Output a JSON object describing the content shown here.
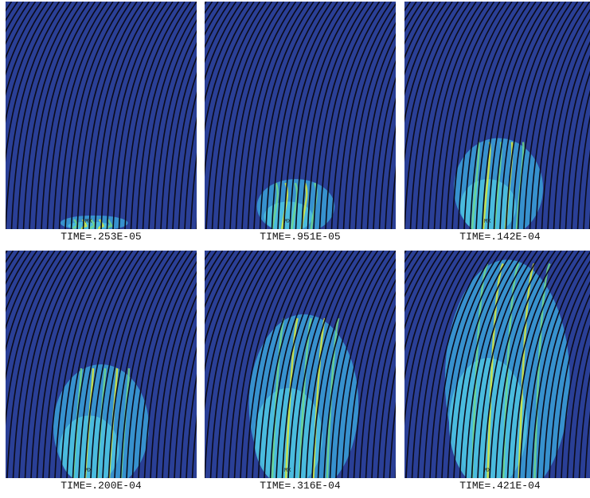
{
  "panels": [
    {
      "caption": "TIME=.253E-05",
      "marker": "MX"
    },
    {
      "caption": "TIME=.951E-05",
      "marker": "MX"
    },
    {
      "caption": "TIME=.142E-04",
      "marker": "MX"
    },
    {
      "caption": "TIME=.200E-04",
      "marker": "MX"
    },
    {
      "caption": "TIME=.316E-04",
      "marker": "MX"
    },
    {
      "caption": "TIME=.421E-04",
      "marker": "MX"
    }
  ]
}
